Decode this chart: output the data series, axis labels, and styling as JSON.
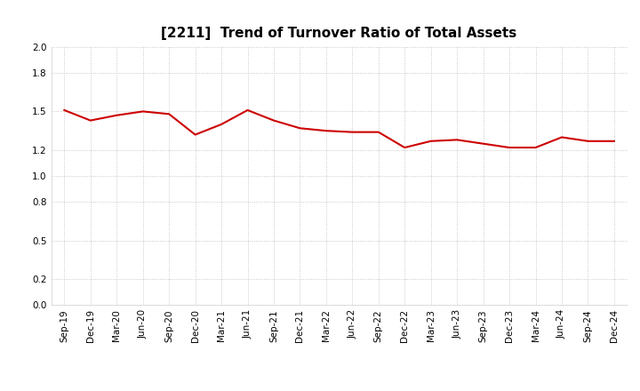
{
  "title": "[2211]  Trend of Turnover Ratio of Total Assets",
  "labels": [
    "Sep-19",
    "Dec-19",
    "Mar-20",
    "Jun-20",
    "Sep-20",
    "Dec-20",
    "Mar-21",
    "Jun-21",
    "Sep-21",
    "Dec-21",
    "Mar-22",
    "Jun-22",
    "Sep-22",
    "Dec-22",
    "Mar-23",
    "Jun-23",
    "Sep-23",
    "Dec-23",
    "Mar-24",
    "Jun-24",
    "Sep-24",
    "Dec-24"
  ],
  "values": [
    1.51,
    1.43,
    1.47,
    1.5,
    1.48,
    1.32,
    1.4,
    1.51,
    1.43,
    1.37,
    1.35,
    1.34,
    1.34,
    1.22,
    1.27,
    1.28,
    1.25,
    1.22,
    1.22,
    1.3,
    1.27,
    1.27
  ],
  "line_color": "#cc0000",
  "line_width": 1.5,
  "ylim": [
    0.0,
    2.0
  ],
  "yticks": [
    0.0,
    0.2,
    0.5,
    0.8,
    1.0,
    1.2,
    1.5,
    1.8,
    2.0
  ],
  "grid_color": "#bbbbbb",
  "background_color": "#ffffff",
  "title_fontsize": 11,
  "tick_fontsize": 7.5
}
